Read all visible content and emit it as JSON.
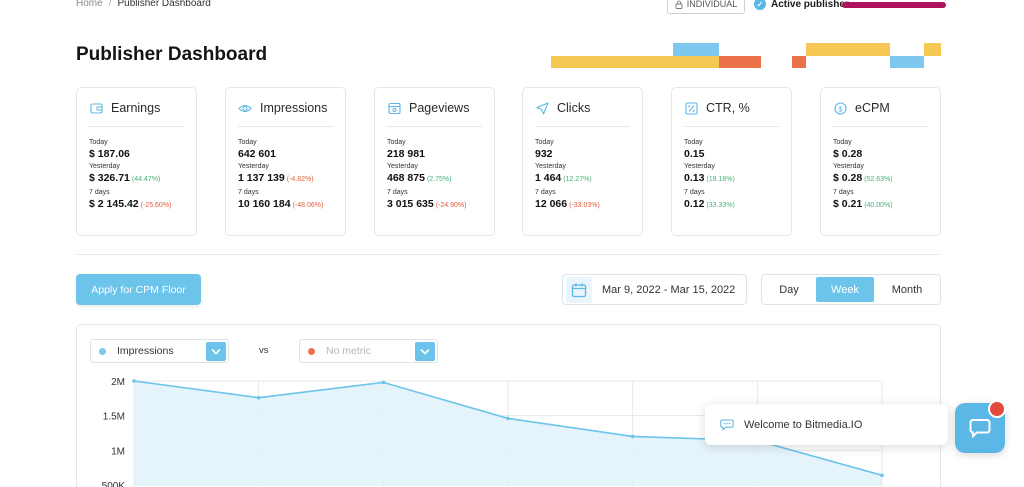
{
  "breadcrumb": {
    "home": "Home",
    "separator": "/",
    "current": "Publisher Dashboard"
  },
  "header": {
    "individual_label": "INDIVIDUAL",
    "active_publisher_label": "Active publisher"
  },
  "page_title": "Publisher Dashboard",
  "colors": {
    "accent": "#6cc4ea",
    "positive": "#49b07a",
    "negative": "#e25d3a",
    "decor_yellow": "#f5c753",
    "decor_blue": "#7ec7ee",
    "decor_orange": "#ea7149",
    "publisher_bar": "#b0135d"
  },
  "cards": [
    {
      "title": "Earnings",
      "icon": "wallet-icon",
      "today_label": "Today",
      "today": "$ 187.06",
      "yesterday_label": "Yesterday",
      "yesterday": "$ 326.71",
      "yesterday_change": "(44.47%)",
      "yesterday_dir": "up",
      "week_label": "7 days",
      "week": "$ 2 145.42",
      "week_change": "(-25.60%)",
      "week_dir": "down"
    },
    {
      "title": "Impressions",
      "icon": "eye-icon",
      "today_label": "Today",
      "today": "642 601",
      "yesterday_label": "Yesterday",
      "yesterday": "1 137 139",
      "yesterday_change": "(-4.82%)",
      "yesterday_dir": "down",
      "week_label": "7 days",
      "week": "10 160 184",
      "week_change": "(-48.06%)",
      "week_dir": "down"
    },
    {
      "title": "Pageviews",
      "icon": "browser-icon",
      "today_label": "Today",
      "today": "218 981",
      "yesterday_label": "Yesterday",
      "yesterday": "468 875",
      "yesterday_change": "(2.75%)",
      "yesterday_dir": "up",
      "week_label": "7 days",
      "week": "3 015 635",
      "week_change": "(-24.90%)",
      "week_dir": "down"
    },
    {
      "title": "Clicks",
      "icon": "cursor-icon",
      "today_label": "Today",
      "today": "932",
      "yesterday_label": "Yesterday",
      "yesterday": "1 464",
      "yesterday_change": "(12.27%)",
      "yesterday_dir": "up",
      "week_label": "7 days",
      "week": "12 066",
      "week_change": "(-33.03%)",
      "week_dir": "down"
    },
    {
      "title": "CTR, %",
      "icon": "percent-icon",
      "today_label": "Today",
      "today": "0.15",
      "yesterday_label": "Yesterday",
      "yesterday": "0.13",
      "yesterday_change": "(18.18%)",
      "yesterday_dir": "up",
      "week_label": "7 days",
      "week": "0.12",
      "week_change": "(33.33%)",
      "week_dir": "up"
    },
    {
      "title": "eCPM",
      "icon": "dollar-icon",
      "today_label": "Today",
      "today": "$ 0.28",
      "yesterday_label": "Yesterday",
      "yesterday": "$ 0.28",
      "yesterday_change": "(52.63%)",
      "yesterday_dir": "up",
      "week_label": "7 days",
      "week": "$ 0.21",
      "week_change": "(40.00%)",
      "week_dir": "up"
    }
  ],
  "actions": {
    "apply_cpm_floor": "Apply for CPM Floor"
  },
  "date_range": {
    "icon": "calendar-icon",
    "text": "Mar 9, 2022  - Mar 15, 2022"
  },
  "periods": [
    {
      "label": "Day",
      "active": false
    },
    {
      "label": "Week",
      "active": true
    },
    {
      "label": "Month",
      "active": false
    }
  ],
  "metric_selector": {
    "primary": "Impressions",
    "primary_color": "#7ec7ee",
    "vs_label": "vs",
    "secondary_placeholder": "No metric",
    "secondary_color": "#ea7149"
  },
  "chart_data": {
    "type": "area",
    "series": [
      {
        "values": [
          2000000,
          1760000,
          1980000,
          1460000,
          1200000,
          1140000,
          640000
        ]
      }
    ],
    "y_ticks": [
      "2M",
      "1.5M",
      "1M",
      "500K"
    ],
    "ylim": [
      500000,
      2000000
    ],
    "grid": true
  },
  "chat": {
    "welcome_text": "Welcome to Bitmedia.IO",
    "welcome_icon": "chat-bubble-icon",
    "launcher_icon": "chat-icon"
  }
}
